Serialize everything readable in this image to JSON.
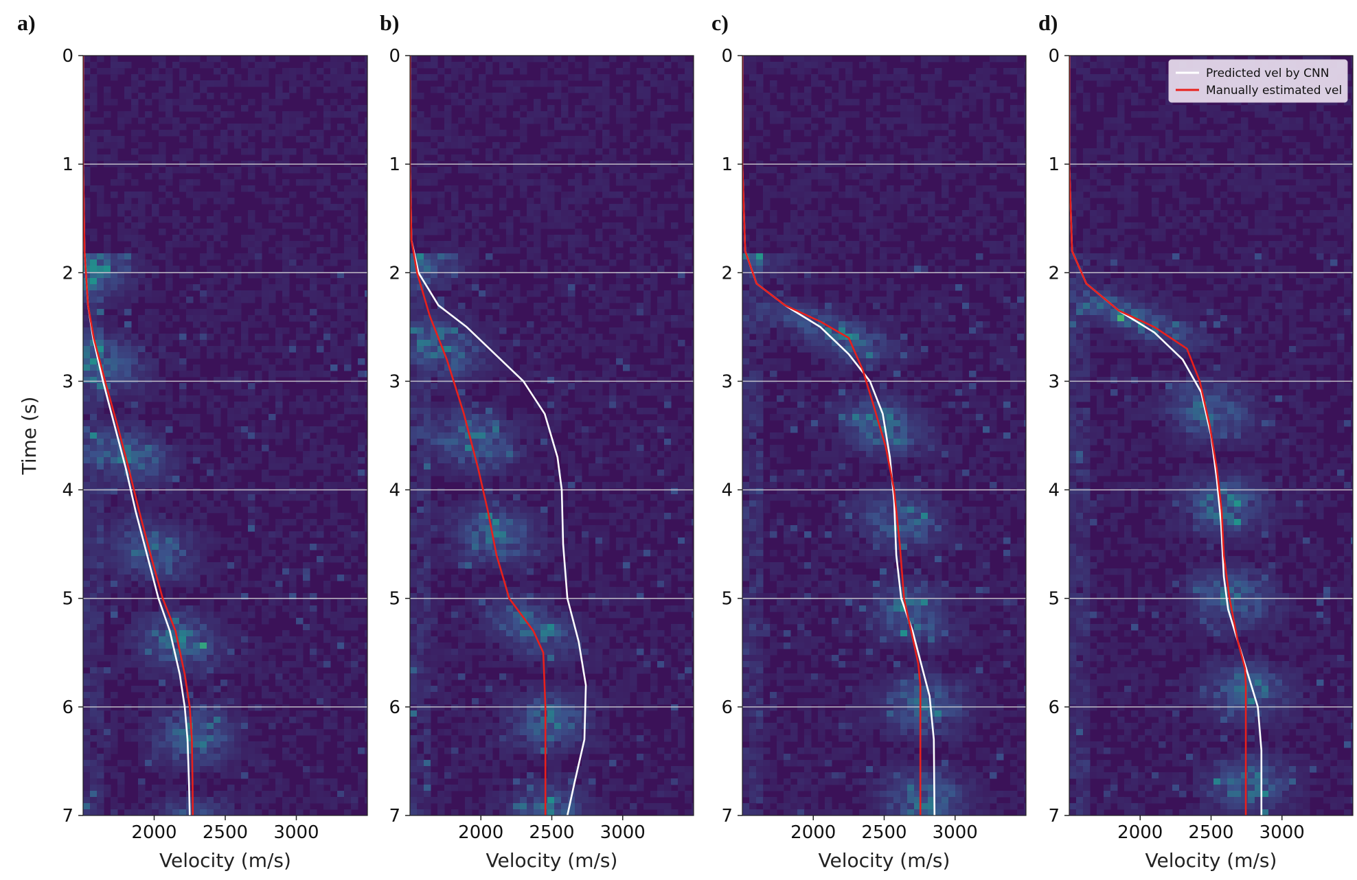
{
  "chart_data": [
    {
      "type": "line",
      "panel": "a)",
      "xlabel": "Velocity (m/s)",
      "ylabel": "Time (s)",
      "xlim": [
        1500,
        3500
      ],
      "ylim": [
        0,
        7
      ],
      "x_ticks": [
        2000,
        2500,
        3000
      ],
      "y_ticks": [
        0,
        1,
        2,
        3,
        4,
        5,
        6,
        7
      ],
      "grid": "horizontal",
      "background": "semblance heatmap",
      "series": [
        {
          "name": "Predicted vel by CNN",
          "color": "#ffffff",
          "points": [
            [
              1500,
              0
            ],
            [
              1500,
              1
            ],
            [
              1510,
              1.8
            ],
            [
              1535,
              2.3
            ],
            [
              1570,
              2.6
            ],
            [
              1640,
              3.0
            ],
            [
              1720,
              3.4
            ],
            [
              1800,
              3.8
            ],
            [
              1870,
              4.2
            ],
            [
              1950,
              4.6
            ],
            [
              2030,
              5.0
            ],
            [
              2110,
              5.3
            ],
            [
              2180,
              5.7
            ],
            [
              2215,
              6.0
            ],
            [
              2235,
              6.3
            ],
            [
              2245,
              6.7
            ],
            [
              2250,
              7.0
            ]
          ]
        },
        {
          "name": "Manually estimated vel",
          "color": "#e8201c",
          "points": [
            [
              1500,
              0
            ],
            [
              1500,
              1
            ],
            [
              1510,
              1.8
            ],
            [
              1535,
              2.3
            ],
            [
              1575,
              2.6
            ],
            [
              1655,
              3.0
            ],
            [
              1740,
              3.4
            ],
            [
              1820,
              3.8
            ],
            [
              1895,
              4.2
            ],
            [
              1975,
              4.6
            ],
            [
              2060,
              5.0
            ],
            [
              2150,
              5.3
            ],
            [
              2215,
              5.7
            ],
            [
              2250,
              6.0
            ],
            [
              2265,
              6.3
            ],
            [
              2270,
              6.7
            ],
            [
              2272,
              7.0
            ]
          ]
        }
      ]
    },
    {
      "type": "line",
      "panel": "b)",
      "xlabel": "Velocity (m/s)",
      "xlim": [
        1500,
        3500
      ],
      "ylim": [
        0,
        7
      ],
      "x_ticks": [
        2000,
        2500,
        3000
      ],
      "y_ticks": [
        0,
        1,
        2,
        3,
        4,
        5,
        6,
        7
      ],
      "grid": "horizontal",
      "background": "semblance heatmap",
      "series": [
        {
          "name": "Predicted vel by CNN",
          "color": "#ffffff",
          "points": [
            [
              1500,
              0
            ],
            [
              1500,
              1
            ],
            [
              1510,
              1.7
            ],
            [
              1560,
              2.0
            ],
            [
              1700,
              2.3
            ],
            [
              1900,
              2.5
            ],
            [
              2100,
              2.75
            ],
            [
              2300,
              3.0
            ],
            [
              2450,
              3.3
            ],
            [
              2540,
              3.7
            ],
            [
              2570,
              4.0
            ],
            [
              2580,
              4.5
            ],
            [
              2610,
              5.0
            ],
            [
              2690,
              5.4
            ],
            [
              2740,
              5.8
            ],
            [
              2730,
              6.3
            ],
            [
              2660,
              6.7
            ],
            [
              2610,
              7.0
            ]
          ]
        },
        {
          "name": "Manually estimated vel",
          "color": "#e8201c",
          "points": [
            [
              1500,
              0
            ],
            [
              1500,
              1
            ],
            [
              1510,
              1.7
            ],
            [
              1550,
              2.0
            ],
            [
              1640,
              2.4
            ],
            [
              1760,
              2.8
            ],
            [
              1880,
              3.3
            ],
            [
              1980,
              3.8
            ],
            [
              2050,
              4.2
            ],
            [
              2110,
              4.6
            ],
            [
              2200,
              5.0
            ],
            [
              2370,
              5.3
            ],
            [
              2440,
              5.5
            ],
            [
              2455,
              6.0
            ],
            [
              2455,
              7.0
            ]
          ]
        }
      ]
    },
    {
      "type": "line",
      "panel": "c)",
      "xlabel": "Velocity (m/s)",
      "xlim": [
        1500,
        3500
      ],
      "ylim": [
        0,
        7
      ],
      "x_ticks": [
        2000,
        2500,
        3000
      ],
      "y_ticks": [
        0,
        1,
        2,
        3,
        4,
        5,
        6,
        7
      ],
      "grid": "horizontal",
      "background": "semblance heatmap",
      "series": [
        {
          "name": "Predicted vel by CNN",
          "color": "#ffffff",
          "points": [
            [
              1500,
              0
            ],
            [
              1500,
              1
            ],
            [
              1520,
              1.8
            ],
            [
              1600,
              2.1
            ],
            [
              1800,
              2.3
            ],
            [
              2050,
              2.5
            ],
            [
              2250,
              2.75
            ],
            [
              2400,
              3.0
            ],
            [
              2490,
              3.3
            ],
            [
              2540,
              3.7
            ],
            [
              2570,
              4.1
            ],
            [
              2585,
              4.6
            ],
            [
              2620,
              5.0
            ],
            [
              2700,
              5.3
            ],
            [
              2760,
              5.6
            ],
            [
              2820,
              5.9
            ],
            [
              2850,
              6.3
            ],
            [
              2855,
              7.0
            ]
          ]
        },
        {
          "name": "Manually estimated vel",
          "color": "#e8201c",
          "points": [
            [
              1500,
              0
            ],
            [
              1500,
              1
            ],
            [
              1520,
              1.8
            ],
            [
              1600,
              2.1
            ],
            [
              1800,
              2.3
            ],
            [
              2050,
              2.45
            ],
            [
              2250,
              2.6
            ],
            [
              2350,
              2.9
            ],
            [
              2420,
              3.2
            ],
            [
              2510,
              3.6
            ],
            [
              2570,
              4.0
            ],
            [
              2610,
              4.5
            ],
            [
              2640,
              5.0
            ],
            [
              2690,
              5.3
            ],
            [
              2740,
              5.6
            ],
            [
              2755,
              5.8
            ],
            [
              2755,
              7.0
            ]
          ]
        }
      ]
    },
    {
      "type": "line",
      "panel": "d)",
      "xlabel": "Velocity (m/s)",
      "xlim": [
        1500,
        3500
      ],
      "ylim": [
        0,
        7
      ],
      "x_ticks": [
        2000,
        2500,
        3000
      ],
      "y_ticks": [
        0,
        1,
        2,
        3,
        4,
        5,
        6,
        7
      ],
      "grid": "horizontal",
      "background": "semblance heatmap",
      "legend": "top-right",
      "series": [
        {
          "name": "Predicted vel by CNN",
          "color": "#ffffff",
          "points": [
            [
              1500,
              0
            ],
            [
              1500,
              1
            ],
            [
              1520,
              1.8
            ],
            [
              1620,
              2.1
            ],
            [
              1850,
              2.35
            ],
            [
              2100,
              2.55
            ],
            [
              2300,
              2.8
            ],
            [
              2430,
              3.1
            ],
            [
              2500,
              3.5
            ],
            [
              2540,
              3.9
            ],
            [
              2570,
              4.3
            ],
            [
              2590,
              4.8
            ],
            [
              2620,
              5.1
            ],
            [
              2690,
              5.4
            ],
            [
              2760,
              5.7
            ],
            [
              2830,
              6.0
            ],
            [
              2855,
              6.4
            ],
            [
              2855,
              7.0
            ]
          ]
        },
        {
          "name": "Manually estimated vel",
          "color": "#e8201c",
          "points": [
            [
              1500,
              0
            ],
            [
              1500,
              1
            ],
            [
              1520,
              1.8
            ],
            [
              1620,
              2.1
            ],
            [
              1850,
              2.35
            ],
            [
              2100,
              2.5
            ],
            [
              2330,
              2.7
            ],
            [
              2420,
              3.0
            ],
            [
              2490,
              3.4
            ],
            [
              2540,
              3.8
            ],
            [
              2575,
              4.2
            ],
            [
              2590,
              4.6
            ],
            [
              2630,
              5.0
            ],
            [
              2690,
              5.4
            ],
            [
              2740,
              5.65
            ],
            [
              2745,
              5.8
            ],
            [
              2745,
              7.0
            ]
          ]
        }
      ]
    }
  ],
  "legend": {
    "entries": [
      {
        "label": "Predicted vel by CNN",
        "color": "#ffffff"
      },
      {
        "label": "Manually estimated vel",
        "color": "#e8201c"
      }
    ]
  },
  "colors": {
    "background": "#3b1258",
    "heatmap_mid": "#3b528b",
    "heatmap_high": "#21918c",
    "heatmap_peak": "#5ec962"
  }
}
